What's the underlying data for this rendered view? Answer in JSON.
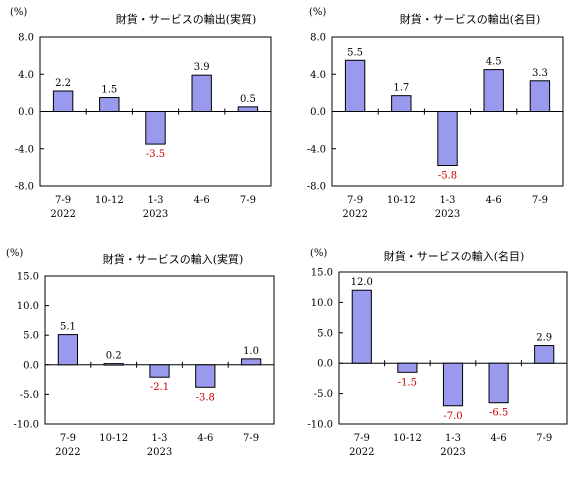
{
  "colors": {
    "bar_fill": "#9999ee",
    "bar_stroke": "#000000",
    "negative_label": "#cc0000",
    "positive_label": "#000000",
    "axis": "#000000"
  },
  "chart_data": [
    {
      "type": "bar",
      "title": "財貨・サービスの輸出(実質)",
      "unit": "(%)",
      "categories": [
        "7-9",
        "10-12",
        "1-3",
        "4-6",
        "7-9"
      ],
      "year_labels": [
        "2022",
        "",
        "2023",
        "",
        ""
      ],
      "values": [
        2.2,
        1.5,
        -3.5,
        3.9,
        0.5
      ],
      "value_labels": [
        "2.2",
        "1.5",
        "-3.5",
        "3.9",
        "0.5"
      ],
      "ylim": [
        -8.0,
        8.0
      ],
      "yticks": [
        "8.0",
        "4.0",
        "0.0",
        "-4.0",
        "-8.0"
      ],
      "ytick_values": [
        8,
        4,
        0,
        -4,
        -8
      ],
      "grid": false
    },
    {
      "type": "bar",
      "title": "財貨・サービスの輸出(名目)",
      "unit": "(%)",
      "categories": [
        "7-9",
        "10-12",
        "1-3",
        "4-6",
        "7-9"
      ],
      "year_labels": [
        "2022",
        "",
        "2023",
        "",
        ""
      ],
      "values": [
        5.5,
        1.7,
        -5.8,
        4.5,
        3.3
      ],
      "value_labels": [
        "5.5",
        "1.7",
        "-5.8",
        "4.5",
        "3.3"
      ],
      "ylim": [
        -8.0,
        8.0
      ],
      "yticks": [
        "8.0",
        "4.0",
        "0.0",
        "-4.0",
        "-8.0"
      ],
      "ytick_values": [
        8,
        4,
        0,
        -4,
        -8
      ],
      "grid": false
    },
    {
      "type": "bar",
      "title": "財貨・サービスの輸入(実質)",
      "unit": "(%)",
      "categories": [
        "7-9",
        "10-12",
        "1-3",
        "4-6",
        "7-9"
      ],
      "year_labels": [
        "2022",
        "",
        "2023",
        "",
        ""
      ],
      "values": [
        5.1,
        0.2,
        -2.1,
        -3.8,
        1.0
      ],
      "value_labels": [
        "5.1",
        "0.2",
        "-2.1",
        "-3.8",
        "1.0"
      ],
      "ylim": [
        -10.0,
        15.0
      ],
      "yticks": [
        "15.0",
        "10.0",
        "5.0",
        "0.0",
        "-5.0",
        "-10.0"
      ],
      "ytick_values": [
        15,
        10,
        5,
        0,
        -5,
        -10
      ],
      "grid": false
    },
    {
      "type": "bar",
      "title": "財貨・サービスの輸入(名目)",
      "unit": "(%)",
      "categories": [
        "7-9",
        "10-12",
        "1-3",
        "4-6",
        "7-9"
      ],
      "year_labels": [
        "2022",
        "",
        "2023",
        "",
        ""
      ],
      "values": [
        12.0,
        -1.5,
        -7.0,
        -6.5,
        2.9
      ],
      "value_labels": [
        "12.0",
        "-1.5",
        "-7.0",
        "-6.5",
        "2.9"
      ],
      "ylim": [
        -10.0,
        15.0
      ],
      "yticks": [
        "15.0",
        "10.0",
        "5.0",
        "0.0",
        "-5.0",
        "-10.0"
      ],
      "ytick_values": [
        15,
        10,
        5,
        0,
        -5,
        -10
      ],
      "grid": false
    }
  ]
}
